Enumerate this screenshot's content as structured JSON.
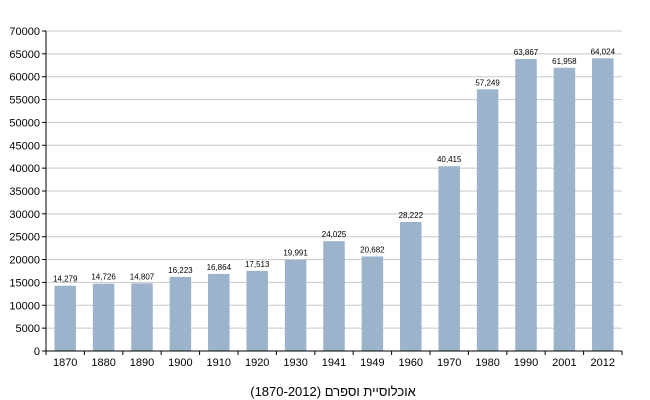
{
  "chart_data": {
    "type": "bar",
    "title": "",
    "caption": "אוכלוסיית וספרם (1870-2012)",
    "xlabel": "",
    "ylabel": "",
    "categories": [
      "1870",
      "1880",
      "1890",
      "1900",
      "1910",
      "1920",
      "1930",
      "1941",
      "1949",
      "1960",
      "1970",
      "1980",
      "1990",
      "2001",
      "2012"
    ],
    "values": [
      14279,
      14726,
      14807,
      16223,
      16864,
      17513,
      19991,
      24025,
      20682,
      28222,
      40415,
      57249,
      63867,
      61958,
      64024
    ],
    "value_labels": [
      "14,279",
      "14,726",
      "14,807",
      "16,223",
      "16,864",
      "17,513",
      "19,991",
      "24,025",
      "20,682",
      "28,222",
      "40,415",
      "57,249",
      "63,867",
      "61,958",
      "64,024"
    ],
    "ylim": [
      0,
      70000
    ],
    "yticks": [
      0,
      5000,
      10000,
      15000,
      20000,
      25000,
      30000,
      35000,
      40000,
      45000,
      50000,
      55000,
      60000,
      65000,
      70000
    ],
    "ytick_labels": [
      "0",
      "5000",
      "10000",
      "15000",
      "20000",
      "25000",
      "30000",
      "35000",
      "40000",
      "45000",
      "50000",
      "55000",
      "60000",
      "65000",
      "70000"
    ],
    "grid": true,
    "legend": "none",
    "colors": {
      "bar": "#9bb4cc",
      "grid": "#c8c8c8",
      "axis": "#000000"
    }
  }
}
